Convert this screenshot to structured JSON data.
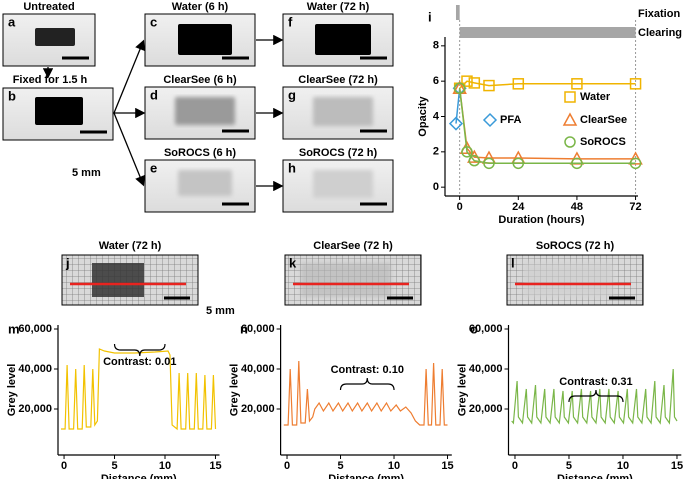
{
  "panels": [
    {
      "letter": "a",
      "label": "Untreated"
    },
    {
      "letter": "b",
      "label": "Fixed for 1.5 h"
    },
    {
      "letter": "c",
      "label": "Water (6 h)"
    },
    {
      "letter": "d",
      "label": "ClearSee (6 h)"
    },
    {
      "letter": "e",
      "label": "SoROCS (6 h)"
    },
    {
      "letter": "f",
      "label": "Water (72 h)"
    },
    {
      "letter": "g",
      "label": "ClearSee (72 h)"
    },
    {
      "letter": "h",
      "label": "SoROCS (72 h)"
    }
  ],
  "profile_panels": [
    {
      "letter": "j",
      "label": "Water (72 h)"
    },
    {
      "letter": "k",
      "label": "ClearSee (72 h)"
    },
    {
      "letter": "l",
      "label": "SoROCS (72 h)"
    }
  ],
  "scale_labels": [
    "5 mm",
    "5 mm"
  ],
  "chart_data": [
    {
      "type": "line",
      "letter": "i",
      "xlabel": "Duration (hours)",
      "ylabel": "Opacity",
      "xlim": [
        -6,
        73
      ],
      "ylim": [
        -0.5,
        8.5
      ],
      "xticks": [
        0,
        24,
        48,
        72
      ],
      "yticks": [
        0,
        2,
        4,
        6,
        8
      ],
      "bands": [
        {
          "label": "Fixation",
          "x": [
            -1.5,
            0
          ]
        },
        {
          "label": "Clearing",
          "x": [
            0,
            72
          ]
        }
      ],
      "series": [
        {
          "name": "PFA",
          "color": "#3a9ad9",
          "marker": "diamond",
          "x": [
            -1.5,
            0
          ],
          "values": [
            3.6,
            5.6
          ]
        },
        {
          "name": "Water",
          "color": "#f0b400",
          "marker": "square",
          "x": [
            0,
            3,
            6,
            12,
            24,
            48,
            72
          ],
          "values": [
            5.6,
            6.0,
            5.9,
            5.75,
            5.85,
            5.85,
            5.85
          ]
        },
        {
          "name": "ClearSee",
          "color": "#ee7d31",
          "marker": "triangle",
          "x": [
            0,
            3,
            6,
            12,
            24,
            48,
            72
          ],
          "values": [
            5.6,
            2.2,
            1.7,
            1.65,
            1.65,
            1.6,
            1.6
          ]
        },
        {
          "name": "SoROCS",
          "color": "#7ab648",
          "marker": "circle",
          "x": [
            0,
            3,
            6,
            12,
            24,
            48,
            72
          ],
          "values": [
            5.6,
            2.0,
            1.5,
            1.35,
            1.35,
            1.35,
            1.35
          ]
        }
      ]
    },
    {
      "type": "line",
      "letter": "m",
      "xlabel": "Distance (mm)",
      "ylabel": "Grey level",
      "xlim": [
        -0.6,
        15.4
      ],
      "ylim": [
        -3000,
        62000
      ],
      "xticks": [
        0,
        5,
        10,
        15
      ],
      "yticks": [
        {
          "value": 20000,
          "label": "20,000"
        },
        {
          "value": 40000,
          "label": "40,000"
        },
        {
          "value": 60000,
          "label": "60,000"
        }
      ],
      "annotation": {
        "text": "Contrast: 0.01",
        "x": [
          5,
          10
        ]
      },
      "series": [
        {
          "color": "#f2c200",
          "x": [
            -0.3,
            0.1,
            0.3,
            0.5,
            0.95,
            1.15,
            1.35,
            1.8,
            2.0,
            2.2,
            2.65,
            2.85,
            3.05,
            3.3,
            3.5,
            4,
            5,
            7,
            9,
            10.3,
            10.5,
            10.7,
            11.2,
            11.4,
            11.6,
            12.05,
            12.25,
            12.45,
            12.9,
            13.1,
            13.3,
            13.75,
            13.95,
            14.15,
            14.6,
            14.8,
            15
          ],
          "values": [
            10000,
            10000,
            42000,
            10000,
            10000,
            40000,
            10000,
            10000,
            42000,
            11000,
            11000,
            40000,
            12000,
            14000,
            50000,
            49000,
            48000,
            48000,
            48500,
            49000,
            47000,
            12000,
            10000,
            38000,
            10000,
            10000,
            38000,
            10000,
            10000,
            38000,
            10000,
            10000,
            37000,
            10000,
            10000,
            37000,
            10000
          ]
        }
      ]
    },
    {
      "type": "line",
      "letter": "n",
      "xlabel": "Distance (mm)",
      "ylabel": "Grey level",
      "xlim": [
        -0.6,
        15.4
      ],
      "ylim": [
        -3000,
        62000
      ],
      "xticks": [
        0,
        5,
        10,
        15
      ],
      "yticks": [
        {
          "value": 20000,
          "label": "20,000"
        },
        {
          "value": 40000,
          "label": "40,000"
        },
        {
          "value": 60000,
          "label": "60,000"
        }
      ],
      "annotation": {
        "text": "Contrast: 0.10",
        "x": [
          5,
          10
        ]
      },
      "series": [
        {
          "color": "#ee7d31",
          "x": [
            -0.3,
            0.1,
            0.3,
            0.5,
            0.9,
            1.1,
            1.3,
            1.7,
            1.9,
            2.1,
            2.4,
            2.6,
            3.0,
            3.4,
            3.9,
            4.3,
            4.8,
            5.2,
            5.7,
            6.1,
            6.6,
            7.0,
            7.5,
            7.9,
            8.4,
            8.8,
            9.3,
            9.7,
            10.2,
            10.6,
            11.1,
            11.6,
            12.0,
            12.4,
            12.8,
            13.0,
            13.2,
            13.5,
            13.7,
            13.9,
            14.3,
            14.5,
            14.7,
            15
          ],
          "values": [
            12000,
            12000,
            40000,
            12000,
            12000,
            44000,
            13000,
            13000,
            30000,
            14000,
            16000,
            20000,
            23000,
            19000,
            23000,
            19000,
            23000,
            19000,
            23000,
            19000,
            23000,
            19000,
            23000,
            19000,
            23000,
            19000,
            23000,
            19000,
            22000,
            19000,
            21000,
            18000,
            14000,
            12000,
            12000,
            40000,
            12000,
            12000,
            43000,
            12000,
            12000,
            40000,
            12000,
            12000
          ]
        }
      ]
    },
    {
      "type": "line",
      "letter": "o",
      "xlabel": "Distance (mm)",
      "ylabel": "Grey level",
      "xlim": [
        -0.6,
        15.4
      ],
      "ylim": [
        -3000,
        62000
      ],
      "xticks": [
        0,
        5,
        10,
        15
      ],
      "yticks": [
        {
          "value": 20000,
          "label": "20,000"
        },
        {
          "value": 40000,
          "label": "40,000"
        },
        {
          "value": 60000,
          "label": "60,000"
        }
      ],
      "annotation": {
        "text": "Contrast: 0.31",
        "x": [
          5,
          10
        ]
      },
      "series": [
        {
          "color": "#7ab648",
          "x": [
            -0.3,
            -0.15,
            0.2,
            0.32,
            0.7,
            1.05,
            1.17,
            1.55,
            1.9,
            2.02,
            2.4,
            2.75,
            2.87,
            3.25,
            3.6,
            3.72,
            4.1,
            4.45,
            4.57,
            4.95,
            5.3,
            5.42,
            5.8,
            6.15,
            6.27,
            6.65,
            7.0,
            7.12,
            7.5,
            7.85,
            7.97,
            8.35,
            8.7,
            8.82,
            9.2,
            9.55,
            9.67,
            10.05,
            10.4,
            10.52,
            10.9,
            11.25,
            11.37,
            11.75,
            12.1,
            12.22,
            12.6,
            12.95,
            13.07,
            13.45,
            13.8,
            13.92,
            14.3,
            14.65,
            14.77,
            15
          ],
          "values": [
            14000,
            13000,
            34000,
            16000,
            13000,
            30000,
            16000,
            13000,
            32000,
            16000,
            13000,
            30000,
            16000,
            13000,
            30000,
            16000,
            13000,
            29000,
            16000,
            13000,
            29000,
            16000,
            13000,
            30000,
            16000,
            13000,
            29000,
            16000,
            13000,
            30000,
            16000,
            13000,
            30000,
            16000,
            13000,
            29000,
            16000,
            13000,
            30000,
            16000,
            13000,
            30000,
            16000,
            13000,
            30000,
            16000,
            13000,
            34000,
            16000,
            13000,
            32000,
            16000,
            13000,
            40000,
            16000,
            14000
          ]
        }
      ]
    }
  ]
}
